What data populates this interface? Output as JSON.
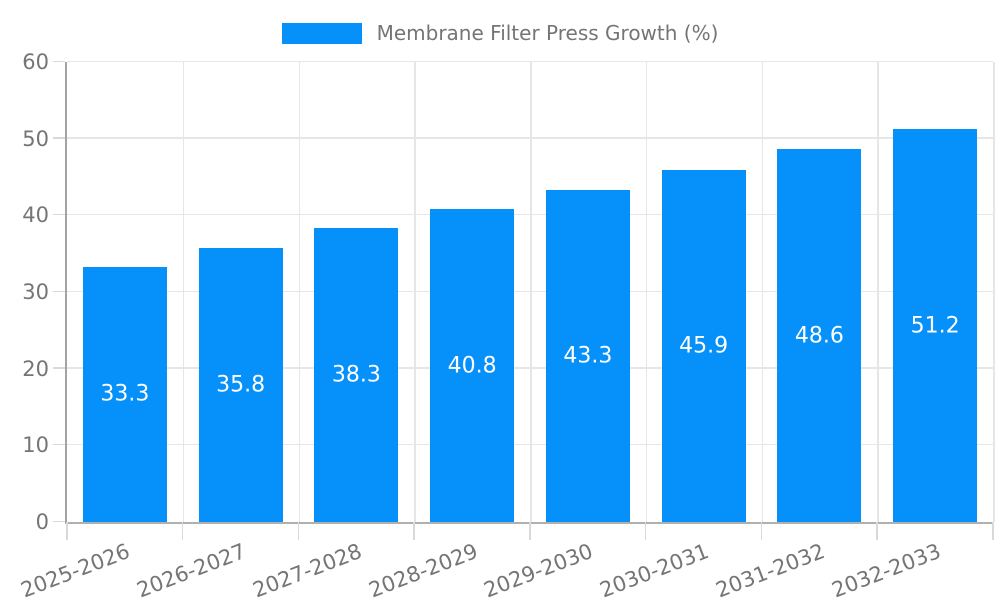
{
  "legend": {
    "label": "Membrane Filter Press Growth (%)"
  },
  "chart_data": {
    "type": "bar",
    "title": "",
    "series_name": "Membrane Filter Press Growth (%)",
    "categories": [
      "2025-2026",
      "2026-2027",
      "2027-2028",
      "2028-2029",
      "2029-2030",
      "2030-2031",
      "2031-2032",
      "2032-2033"
    ],
    "values": [
      33.3,
      35.8,
      38.3,
      40.8,
      43.3,
      45.9,
      48.6,
      51.2
    ],
    "data_labels": [
      "33.3",
      "35.8",
      "38.3",
      "40.8",
      "43.3",
      "45.9",
      "48.6",
      "51.2"
    ],
    "xlabel": "",
    "ylabel": "",
    "ylim": [
      0,
      60
    ],
    "yticks": [
      0,
      10,
      20,
      30,
      40,
      50,
      60
    ],
    "grid": true,
    "legend_position": "top",
    "bar_color": "#0590fa",
    "data_label_color": "#ffffff",
    "axis_text_color": "#757575",
    "gridline_color": "#e6e6e6"
  }
}
